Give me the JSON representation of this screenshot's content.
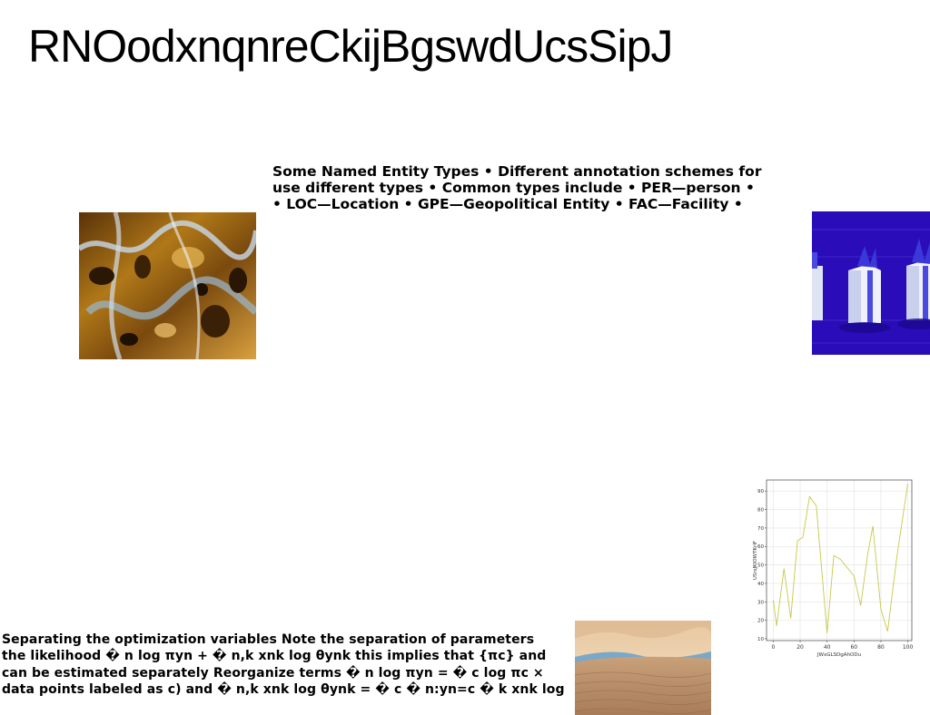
{
  "page": {
    "title": "RNOodxnqnreCkijBgswdUcsSipJ"
  },
  "top_paragraph": {
    "lines": [
      "Some Named Entity Types • Different annotation schemes for",
      "use different types • Common types include • PER—person •",
      "• LOC—Location • GPE—Geopolitical Entity • FAC—Facility •"
    ]
  },
  "bottom_paragraph": {
    "lines": [
      "Separating the optimization variables Note the separation of parameters",
      "the likelihood � n log πyn + � n,k xnk log θynk this implies that {πc} and",
      "can be estimated separately Reorganize terms � n log πyn = � c log πc ×",
      "data points labeled as c) and � n,k xnk log θynk = � c � n:yn=c � k xnk log"
    ]
  },
  "images": {
    "marble": {
      "icon": "abstract-marble-image"
    },
    "gifts": {
      "icon": "blue-gift-boxes-image"
    },
    "desert": {
      "icon": "desert-dunes-image"
    }
  },
  "chart_data": {
    "type": "line",
    "title": "",
    "xlabel": "JWxGLSDgAhODu",
    "ylabel": "USrsJKlOWTKrIF",
    "xlim": [
      -5,
      103
    ],
    "ylim": [
      9,
      96
    ],
    "xticks": [
      0,
      20,
      40,
      60,
      80,
      100
    ],
    "yticks": [
      10,
      20,
      30,
      40,
      50,
      60,
      70,
      80,
      90
    ],
    "grid": true,
    "color": "#c8c84a",
    "series": [
      {
        "x": [
          0,
          2.5,
          8,
          13,
          18,
          22,
          27,
          32,
          40,
          45,
          50,
          60,
          65,
          70,
          74,
          80,
          85,
          92,
          100
        ],
        "values": [
          31,
          17,
          48,
          21,
          63,
          65,
          87,
          82,
          13,
          55,
          53,
          44,
          28,
          55,
          71,
          26,
          14,
          55,
          94
        ]
      }
    ]
  }
}
